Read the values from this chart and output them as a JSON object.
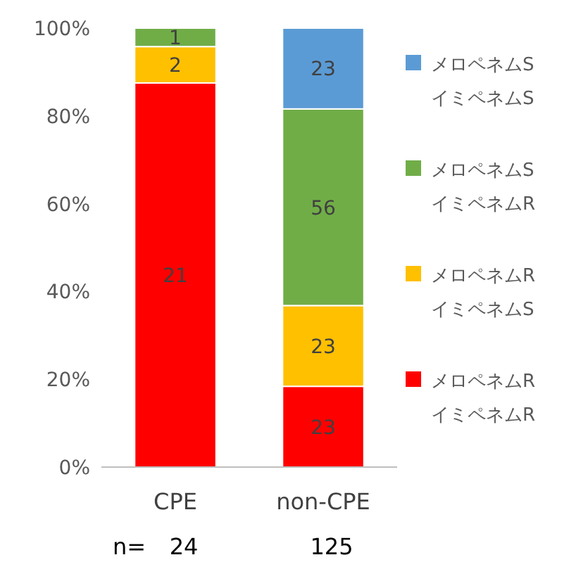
{
  "chart_data": {
    "type": "bar",
    "stacked": true,
    "categories": [
      "CPE",
      "non-CPE"
    ],
    "series": [
      {
        "name": "メロペネムR\nイミペネムR",
        "color": "#ff0000",
        "values": [
          87.5,
          18.4
        ]
      },
      {
        "name": "メロペネムR\nイミペネムS",
        "color": "#ffc000",
        "values": [
          8.3,
          18.4
        ]
      },
      {
        "name": "メロペネムS\nイミペネムR",
        "color": "#70ad47",
        "values": [
          4.2,
          44.8
        ]
      },
      {
        "name": "メロペネムS\nイミペネムS",
        "color": "#5b9bd5",
        "values": [
          0,
          18.4
        ]
      }
    ],
    "ylim": [
      0,
      100
    ],
    "yticks": [
      {
        "value": 0,
        "label": "0%"
      },
      {
        "value": 20,
        "label": "20%"
      },
      {
        "value": 40,
        "label": "40%"
      },
      {
        "value": 60,
        "label": "60%"
      },
      {
        "value": 80,
        "label": "80%"
      },
      {
        "value": 100,
        "label": "100%"
      }
    ],
    "legend": "right",
    "annotations": [
      "n=",
      "24",
      "125",
      "21",
      "23",
      "2",
      "23",
      "1",
      "56",
      "23"
    ]
  }
}
